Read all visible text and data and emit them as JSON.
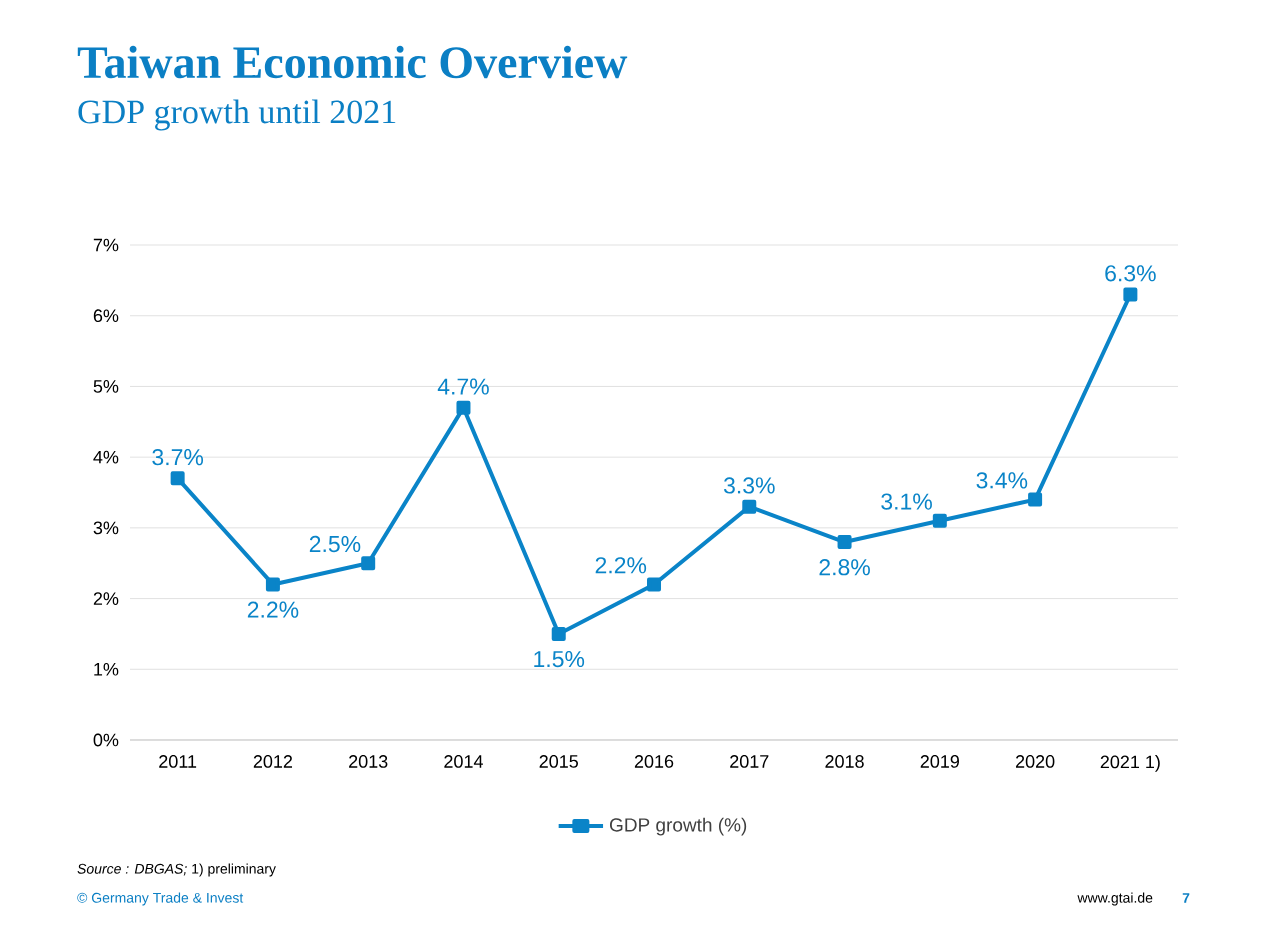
{
  "chart_data": {
    "type": "line",
    "title": "Taiwan Economic Overview",
    "subtitle": "GDP growth until 2021",
    "categories": [
      "2011",
      "2012",
      "2013",
      "2014",
      "2015",
      "2016",
      "2017",
      "2018",
      "2019",
      "2020",
      "2021 1)"
    ],
    "series": [
      {
        "name": "GDP growth (%)",
        "color": "#0a84c8",
        "values": [
          3.7,
          2.2,
          2.5,
          4.7,
          1.5,
          2.2,
          3.3,
          2.8,
          3.1,
          3.4,
          6.3
        ],
        "value_labels": [
          "3.7%",
          "2.2%",
          "2.5%",
          "4.7%",
          "1.5%",
          "2.2%",
          "3.3%",
          "2.8%",
          "3.1%",
          "3.4%",
          "6.3%"
        ]
      }
    ],
    "ylim": [
      0,
      7
    ],
    "yticks": [
      {
        "value": 0,
        "label": "0%"
      },
      {
        "value": 1,
        "label": "1%"
      },
      {
        "value": 2,
        "label": "2%"
      },
      {
        "value": 3,
        "label": "3%"
      },
      {
        "value": 4,
        "label": "4%"
      },
      {
        "value": 5,
        "label": "5%"
      },
      {
        "value": 6,
        "label": "6%"
      },
      {
        "value": 7,
        "label": "7%"
      }
    ],
    "grid": "y",
    "legend": "bottom",
    "marker": "square",
    "line_style": "solid",
    "annotations": [
      "*Source : DBGAS;* 1) preliminary",
      "© Germany Trade & Invest",
      "www.gtai.de",
      "7"
    ]
  }
}
